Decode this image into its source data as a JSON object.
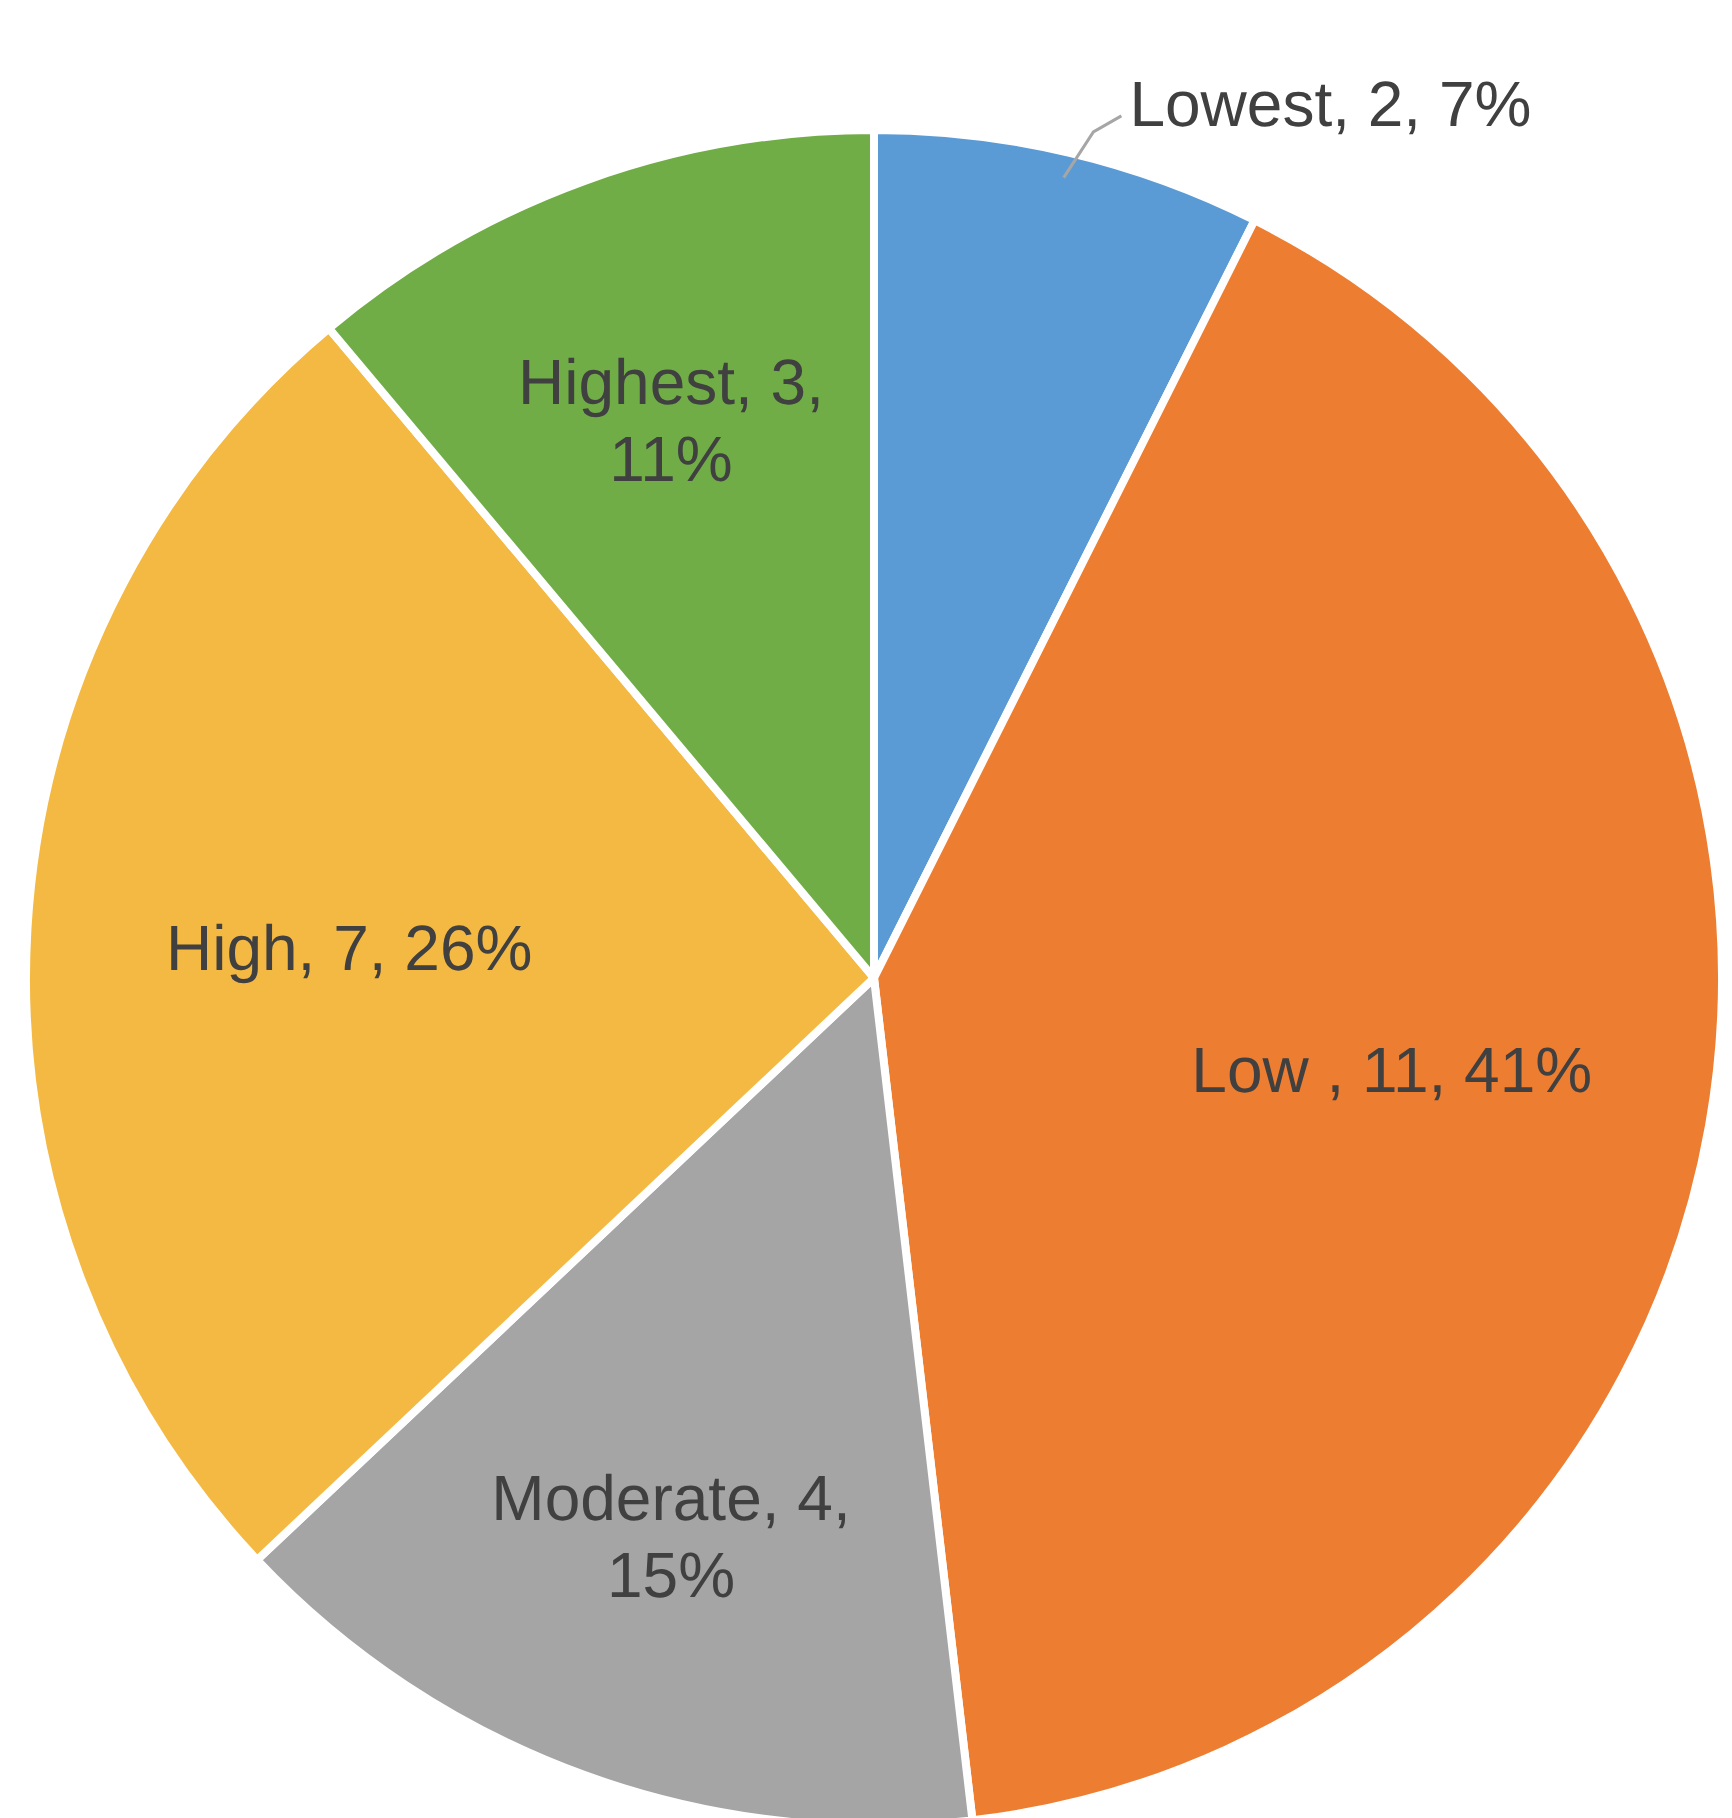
{
  "chart_data": {
    "type": "pie",
    "categories": [
      "Lowest",
      "Low ",
      "Moderate",
      "High",
      "Highest"
    ],
    "values": [
      2,
      11,
      4,
      7,
      3
    ],
    "value_labels": [
      "2, 7%",
      "11, 41%",
      "4, 15%",
      "7, 26%",
      "3, 11%"
    ],
    "colors": [
      "#5b9bd5",
      "#ed7d31",
      "#a5a5a5",
      "#f4b942",
      "#70ad47"
    ]
  }
}
